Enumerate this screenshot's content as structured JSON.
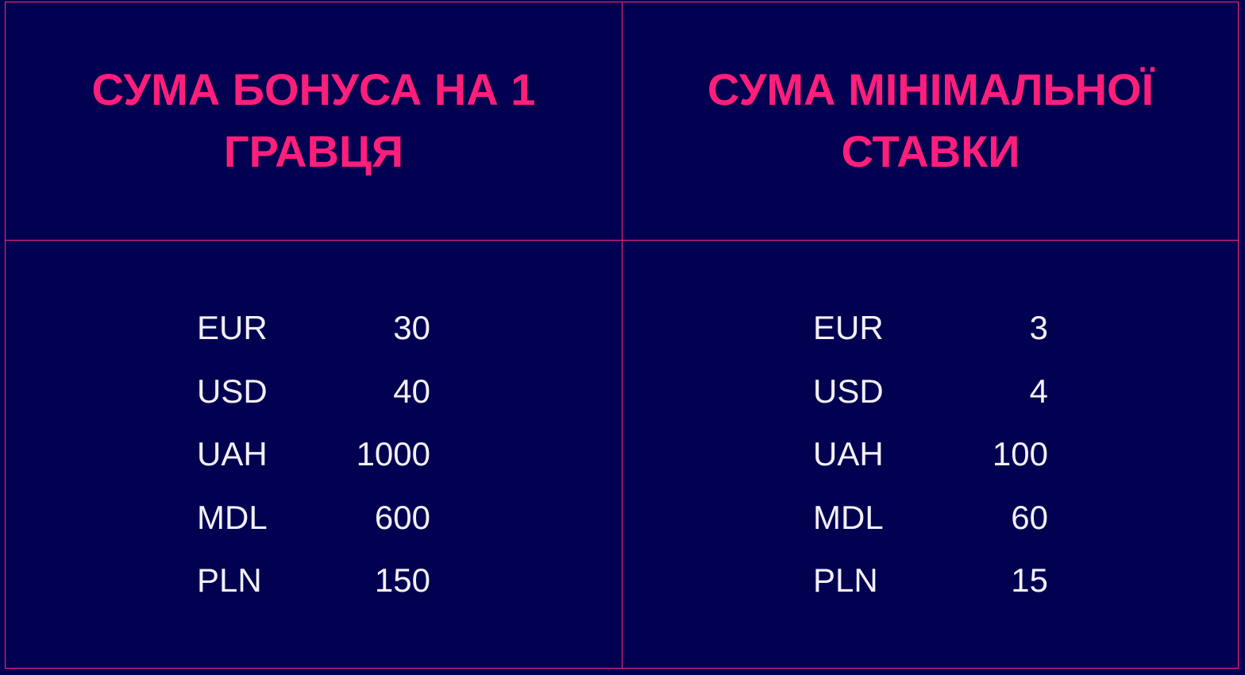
{
  "columns": [
    {
      "title": "СУМА БОНУСА НА 1 ГРАВЦЯ",
      "rows": [
        {
          "currency": "EUR",
          "value": "30"
        },
        {
          "currency": "USD",
          "value": "40"
        },
        {
          "currency": "UAH",
          "value": "1000"
        },
        {
          "currency": "MDL",
          "value": "600"
        },
        {
          "currency": "PLN",
          "value": "150"
        }
      ]
    },
    {
      "title": "СУМА МІНІМАЛЬНОЇ СТАВКИ",
      "rows": [
        {
          "currency": "EUR",
          "value": "3"
        },
        {
          "currency": "USD",
          "value": "4"
        },
        {
          "currency": "UAH",
          "value": "100"
        },
        {
          "currency": "MDL",
          "value": "60"
        },
        {
          "currency": "PLN",
          "value": "15"
        }
      ]
    }
  ],
  "colors": {
    "background": "#020050",
    "accent": "#ff1f7a",
    "text": "#f2f0f8"
  }
}
